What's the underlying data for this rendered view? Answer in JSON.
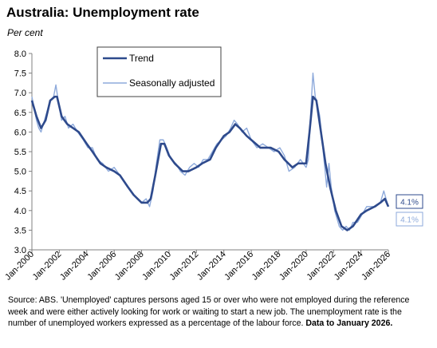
{
  "page": {
    "title": "Australia: Unemployment rate",
    "subtitle": "Per cent",
    "source_text": "Source: ABS.  'Unemployed' captures persons aged 15 or over who were not employed during the reference week and were either actively looking for work or waiting to start a new job. The unemployment rate is the number of unemployed workers expressed as a percentage of the labour force. ",
    "source_bold": "Data to January 2026."
  },
  "chart_data": {
    "type": "line",
    "ylim": [
      3.0,
      8.0
    ],
    "xlim": [
      "2000-01",
      "2026-01"
    ],
    "yticks": [
      "3.0",
      "3.5",
      "4.0",
      "4.5",
      "5.0",
      "5.5",
      "6.0",
      "6.5",
      "7.0",
      "7.5",
      "8.0"
    ],
    "xticks": [
      "Jan-2000",
      "Jan-2002",
      "Jan-2004",
      "Jan-2006",
      "Jan-2008",
      "Jan-2010",
      "Jan-2012",
      "Jan-2014",
      "Jan-2016",
      "Jan-2018",
      "Jan-2020",
      "Jan-2022",
      "Jan-2024",
      "Jan-2026"
    ],
    "grid": false,
    "legend_position": "top-left",
    "series": [
      {
        "name": "Trend",
        "color": "#2e4a8c",
        "end_label": "4.1%",
        "points": [
          [
            "2000-01",
            6.8
          ],
          [
            "2000-05",
            6.4
          ],
          [
            "2000-09",
            6.1
          ],
          [
            "2001-01",
            6.3
          ],
          [
            "2001-05",
            6.8
          ],
          [
            "2001-09",
            6.9
          ],
          [
            "2001-11",
            6.9
          ],
          [
            "2002-03",
            6.4
          ],
          [
            "2002-08",
            6.2
          ],
          [
            "2003-01",
            6.1
          ],
          [
            "2003-06",
            6.0
          ],
          [
            "2004-01",
            5.7
          ],
          [
            "2004-06",
            5.5
          ],
          [
            "2005-01",
            5.2
          ],
          [
            "2005-06",
            5.1
          ],
          [
            "2006-01",
            5.0
          ],
          [
            "2006-06",
            4.9
          ],
          [
            "2007-01",
            4.6
          ],
          [
            "2007-06",
            4.4
          ],
          [
            "2008-01",
            4.2
          ],
          [
            "2008-06",
            4.2
          ],
          [
            "2008-09",
            4.3
          ],
          [
            "2009-01",
            4.9
          ],
          [
            "2009-06",
            5.7
          ],
          [
            "2009-09",
            5.7
          ],
          [
            "2010-01",
            5.4
          ],
          [
            "2010-06",
            5.2
          ],
          [
            "2011-01",
            5.0
          ],
          [
            "2011-06",
            5.0
          ],
          [
            "2012-01",
            5.1
          ],
          [
            "2012-06",
            5.2
          ],
          [
            "2013-01",
            5.3
          ],
          [
            "2013-06",
            5.6
          ],
          [
            "2014-01",
            5.9
          ],
          [
            "2014-06",
            6.0
          ],
          [
            "2014-11",
            6.2
          ],
          [
            "2015-03",
            6.1
          ],
          [
            "2015-09",
            5.9
          ],
          [
            "2016-01",
            5.8
          ],
          [
            "2016-09",
            5.6
          ],
          [
            "2017-06",
            5.6
          ],
          [
            "2018-01",
            5.5
          ],
          [
            "2018-06",
            5.3
          ],
          [
            "2019-01",
            5.1
          ],
          [
            "2019-06",
            5.2
          ],
          [
            "2020-01",
            5.2
          ],
          [
            "2020-04",
            6.0
          ],
          [
            "2020-07",
            6.9
          ],
          [
            "2020-10",
            6.8
          ],
          [
            "2021-01",
            6.2
          ],
          [
            "2021-06",
            5.2
          ],
          [
            "2021-10",
            4.6
          ],
          [
            "2022-03",
            4.0
          ],
          [
            "2022-08",
            3.6
          ],
          [
            "2023-01",
            3.5
          ],
          [
            "2023-06",
            3.6
          ],
          [
            "2024-01",
            3.9
          ],
          [
            "2024-06",
            4.0
          ],
          [
            "2025-01",
            4.1
          ],
          [
            "2025-06",
            4.2
          ],
          [
            "2025-10",
            4.3
          ],
          [
            "2026-01",
            4.1
          ]
        ]
      },
      {
        "name": "Seasonally adjusted",
        "color": "#8eaadb",
        "end_label": "4.1%",
        "points": [
          [
            "2000-01",
            6.9
          ],
          [
            "2000-03",
            6.6
          ],
          [
            "2000-05",
            6.3
          ],
          [
            "2000-07",
            6.1
          ],
          [
            "2000-09",
            6.0
          ],
          [
            "2000-11",
            6.2
          ],
          [
            "2001-02",
            6.5
          ],
          [
            "2001-05",
            6.8
          ],
          [
            "2001-08",
            6.9
          ],
          [
            "2001-10",
            7.2
          ],
          [
            "2001-12",
            6.8
          ],
          [
            "2002-03",
            6.3
          ],
          [
            "2002-06",
            6.4
          ],
          [
            "2002-09",
            6.1
          ],
          [
            "2003-01",
            6.2
          ],
          [
            "2003-05",
            6.0
          ],
          [
            "2003-10",
            5.8
          ],
          [
            "2004-02",
            5.6
          ],
          [
            "2004-06",
            5.6
          ],
          [
            "2004-10",
            5.3
          ],
          [
            "2005-03",
            5.2
          ],
          [
            "2005-08",
            5.0
          ],
          [
            "2006-01",
            5.1
          ],
          [
            "2006-06",
            4.9
          ],
          [
            "2006-11",
            4.7
          ],
          [
            "2007-04",
            4.5
          ],
          [
            "2007-09",
            4.3
          ],
          [
            "2008-01",
            4.2
          ],
          [
            "2008-05",
            4.3
          ],
          [
            "2008-08",
            4.1
          ],
          [
            "2008-11",
            4.5
          ],
          [
            "2009-02",
            5.2
          ],
          [
            "2009-05",
            5.8
          ],
          [
            "2009-08",
            5.8
          ],
          [
            "2009-11",
            5.6
          ],
          [
            "2010-03",
            5.3
          ],
          [
            "2010-07",
            5.2
          ],
          [
            "2010-11",
            5.0
          ],
          [
            "2011-03",
            4.9
          ],
          [
            "2011-07",
            5.1
          ],
          [
            "2011-11",
            5.2
          ],
          [
            "2012-03",
            5.1
          ],
          [
            "2012-07",
            5.3
          ],
          [
            "2012-11",
            5.3
          ],
          [
            "2013-03",
            5.5
          ],
          [
            "2013-07",
            5.7
          ],
          [
            "2013-11",
            5.8
          ],
          [
            "2014-03",
            5.9
          ],
          [
            "2014-07",
            6.1
          ],
          [
            "2014-10",
            6.3
          ],
          [
            "2015-01",
            6.2
          ],
          [
            "2015-05",
            6.0
          ],
          [
            "2015-09",
            6.1
          ],
          [
            "2016-01",
            5.8
          ],
          [
            "2016-06",
            5.6
          ],
          [
            "2016-11",
            5.7
          ],
          [
            "2017-04",
            5.6
          ],
          [
            "2017-09",
            5.5
          ],
          [
            "2018-02",
            5.6
          ],
          [
            "2018-06",
            5.4
          ],
          [
            "2018-10",
            5.0
          ],
          [
            "2019-03",
            5.1
          ],
          [
            "2019-08",
            5.3
          ],
          [
            "2020-01",
            5.1
          ],
          [
            "2020-03",
            5.3
          ],
          [
            "2020-05",
            6.5
          ],
          [
            "2020-07",
            7.5
          ],
          [
            "2020-09",
            6.9
          ],
          [
            "2020-11",
            6.7
          ],
          [
            "2021-01",
            6.4
          ],
          [
            "2021-05",
            5.2
          ],
          [
            "2021-07",
            4.6
          ],
          [
            "2021-09",
            5.2
          ],
          [
            "2021-11",
            4.6
          ],
          [
            "2022-02",
            4.0
          ],
          [
            "2022-06",
            3.6
          ],
          [
            "2022-09",
            3.5
          ],
          [
            "2022-12",
            3.6
          ],
          [
            "2023-03",
            3.5
          ],
          [
            "2023-06",
            3.7
          ],
          [
            "2023-10",
            3.7
          ],
          [
            "2024-02",
            3.9
          ],
          [
            "2024-06",
            4.1
          ],
          [
            "2024-10",
            4.1
          ],
          [
            "2025-02",
            4.1
          ],
          [
            "2025-06",
            4.2
          ],
          [
            "2025-09",
            4.5
          ],
          [
            "2025-11",
            4.3
          ],
          [
            "2026-01",
            4.1
          ]
        ]
      }
    ]
  }
}
